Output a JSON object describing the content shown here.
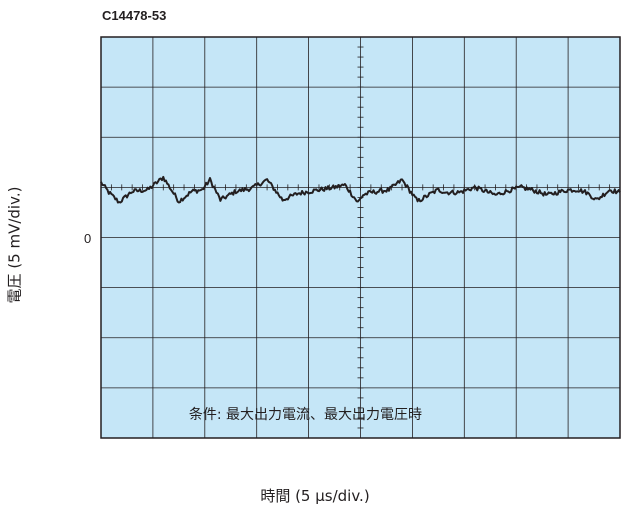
{
  "chart_data": {
    "type": "line",
    "title": "C14478-53",
    "xlabel": "時間 (5 µs/div.)",
    "ylabel": "電圧 (5 mV/div.)",
    "x_divisions": 10,
    "y_divisions": 8,
    "xlim": [
      0,
      10
    ],
    "ylim": [
      -5,
      3
    ],
    "x_unit": "div",
    "y_unit": "div",
    "grid": true,
    "background_color": "#c5e6f7",
    "trace_color": "#231f20",
    "y_tick_labels": [
      {
        "value": 0,
        "label": "0"
      }
    ],
    "annotation": "条件: 最大出力電流、最大出力電圧時",
    "series": [
      {
        "x": [
          0,
          0.15,
          0.35,
          0.6,
          0.9,
          1.2,
          1.5,
          1.75,
          1.95,
          2.1,
          2.3,
          2.6,
          2.9,
          3.2,
          3.5,
          3.8,
          4.2,
          4.5,
          4.7,
          4.95,
          5.05,
          5.2,
          5.35,
          5.55,
          5.8,
          6.1,
          6.4,
          6.5,
          6.65,
          6.9,
          7.2,
          7.6,
          7.9,
          8.1,
          8.3,
          8.6,
          8.8,
          9.0,
          9.2,
          9.35,
          9.55,
          9.8,
          10.0
        ],
        "y": [
          0.1,
          -0.1,
          -0.3,
          -0.08,
          -0.05,
          0.2,
          -0.28,
          -0.08,
          -0.05,
          0.15,
          -0.25,
          -0.08,
          -0.02,
          0.15,
          -0.25,
          -0.12,
          -0.05,
          0.0,
          0.05,
          -0.3,
          -0.15,
          -0.1,
          -0.08,
          -0.05,
          0.15,
          -0.28,
          -0.1,
          -0.05,
          -0.1,
          -0.1,
          0.0,
          -0.15,
          -0.05,
          0.0,
          -0.05,
          -0.15,
          -0.1,
          -0.05,
          -0.05,
          -0.1,
          -0.25,
          -0.05,
          -0.1
        ]
      }
    ]
  }
}
